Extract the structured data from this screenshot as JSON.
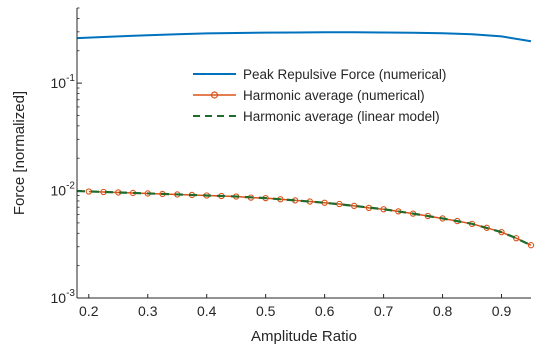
{
  "chart_data": {
    "type": "line",
    "title": "",
    "xlabel": "Amplitude Ratio",
    "ylabel": "Force [normalized]",
    "xlim": [
      0.18,
      0.95
    ],
    "ylim": [
      0.001,
      0.5
    ],
    "yscale": "log",
    "grid": false,
    "legend_position": "center-right",
    "x_ticks": [
      "0.2",
      "0.3",
      "0.4",
      "0.5",
      "0.6",
      "0.7",
      "0.8",
      "0.9"
    ],
    "x_tick_values": [
      0.2,
      0.3,
      0.4,
      0.5,
      0.6,
      0.7,
      0.8,
      0.9
    ],
    "y_ticks": [
      {
        "value": 0.001,
        "base": "10",
        "exp": "-3"
      },
      {
        "value": 0.01,
        "base": "10",
        "exp": "-2"
      },
      {
        "value": 0.1,
        "base": "10",
        "exp": "-1"
      }
    ],
    "series": [
      {
        "name": "Peak Repulsive Force (numerical)",
        "color": "#0072BD",
        "style": "solid",
        "x": [
          0.18,
          0.25,
          0.3,
          0.35,
          0.4,
          0.45,
          0.5,
          0.55,
          0.6,
          0.65,
          0.7,
          0.75,
          0.8,
          0.85,
          0.9,
          0.95
        ],
        "y": [
          0.262,
          0.272,
          0.279,
          0.285,
          0.29,
          0.293,
          0.295,
          0.296,
          0.297,
          0.297,
          0.296,
          0.294,
          0.291,
          0.285,
          0.272,
          0.245
        ]
      },
      {
        "name": "Harmonic average (numerical)",
        "color": "#D95319",
        "style": "solid-marker",
        "x": [
          0.2,
          0.225,
          0.25,
          0.275,
          0.3,
          0.325,
          0.35,
          0.375,
          0.4,
          0.425,
          0.45,
          0.475,
          0.5,
          0.525,
          0.55,
          0.575,
          0.6,
          0.625,
          0.65,
          0.675,
          0.7,
          0.725,
          0.75,
          0.775,
          0.8,
          0.825,
          0.85,
          0.875,
          0.9,
          0.925,
          0.95
        ],
        "y": [
          0.0098,
          0.0097,
          0.0096,
          0.0095,
          0.0094,
          0.0093,
          0.0092,
          0.0091,
          0.009,
          0.0089,
          0.0088,
          0.0086,
          0.0085,
          0.0083,
          0.0081,
          0.0079,
          0.0077,
          0.0075,
          0.0072,
          0.0069,
          0.0067,
          0.0064,
          0.0061,
          0.0058,
          0.0055,
          0.0052,
          0.0049,
          0.0045,
          0.0041,
          0.0036,
          0.0031
        ]
      },
      {
        "name": "Harmonic average (linear model)",
        "color": "#1F6B2C",
        "style": "dashed",
        "x": [
          0.18,
          0.25,
          0.3,
          0.35,
          0.4,
          0.45,
          0.5,
          0.55,
          0.6,
          0.65,
          0.7,
          0.75,
          0.8,
          0.85,
          0.9,
          0.92,
          0.95
        ],
        "y": [
          0.0099,
          0.0096,
          0.0094,
          0.0092,
          0.009,
          0.0088,
          0.0085,
          0.0081,
          0.0077,
          0.0072,
          0.0067,
          0.0061,
          0.0055,
          0.0049,
          0.0041,
          0.0037,
          0.0031
        ]
      }
    ]
  }
}
